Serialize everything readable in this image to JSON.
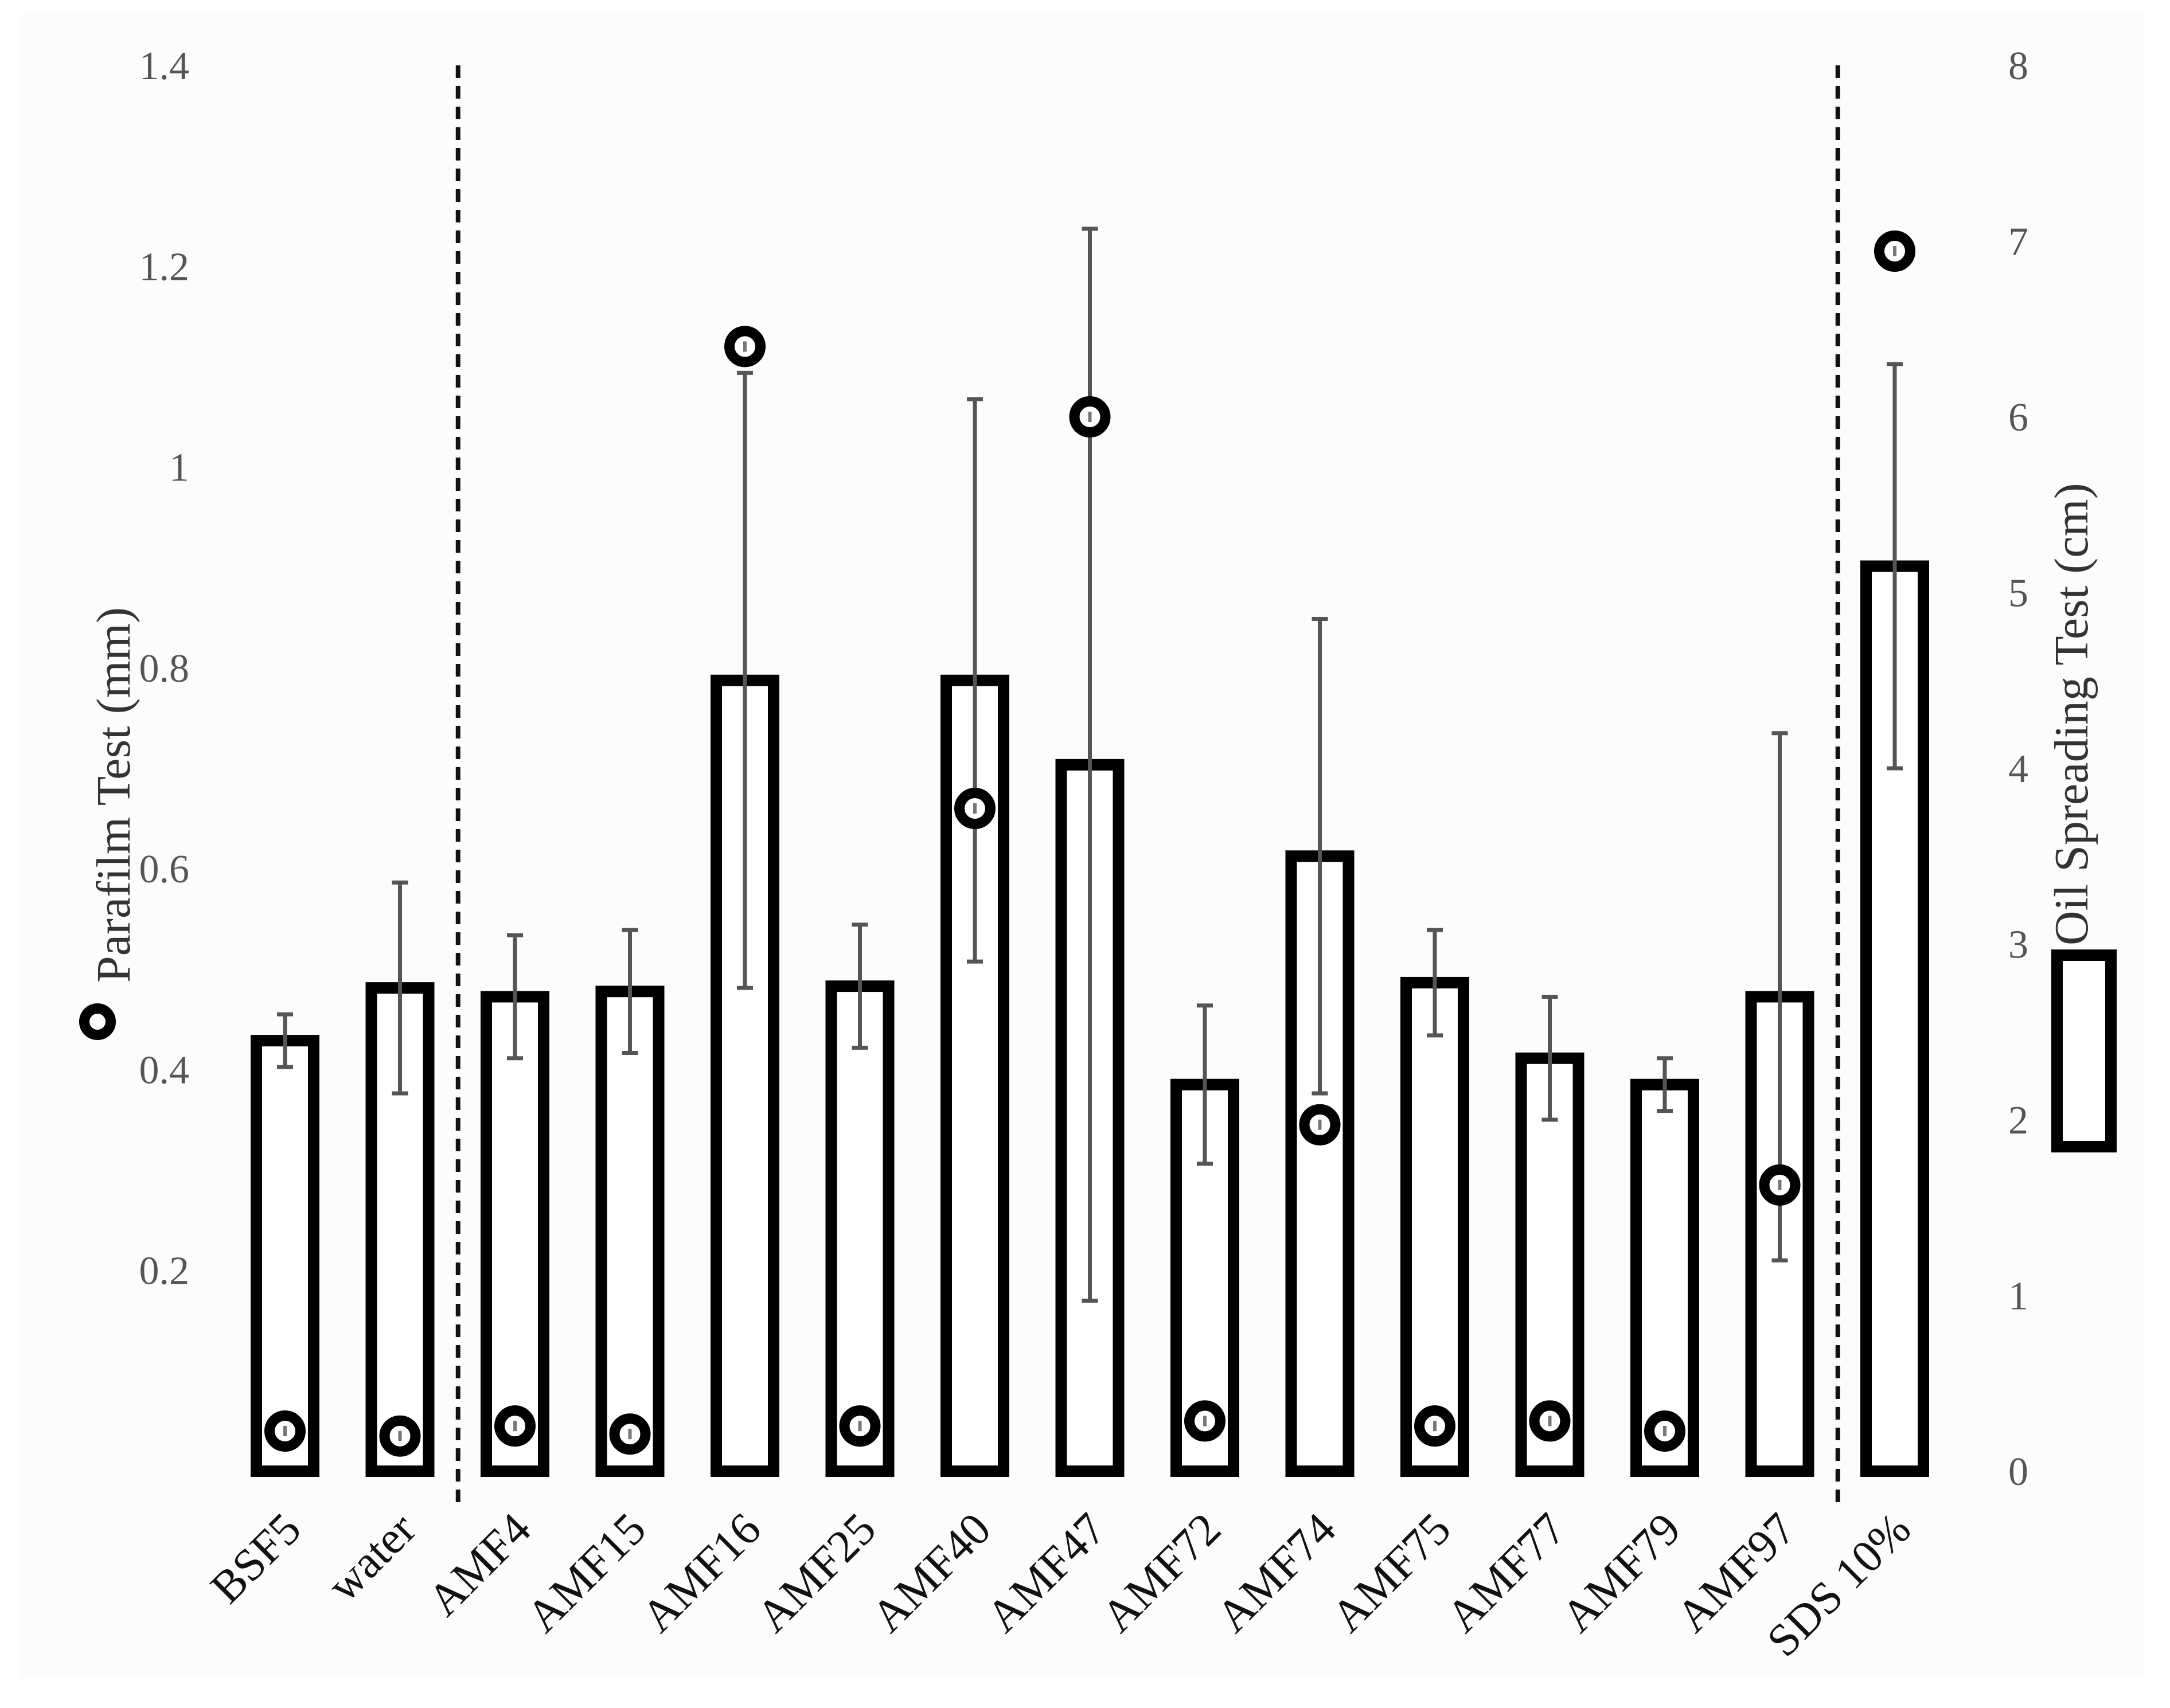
{
  "chart_data": {
    "type": "bar",
    "categories": [
      "BSF5",
      "water",
      "AMF4",
      "AMF15",
      "AMF16",
      "AMF25",
      "AMF40",
      "AMF47",
      "AMF72",
      "AMF74",
      "AMF75",
      "AMF77",
      "AMF79",
      "AMF97",
      "SDS 10%"
    ],
    "series": [
      {
        "name": "Oil Spreading Test (cm)",
        "kind": "bar",
        "axis": "right",
        "values": [
          2.45,
          2.75,
          2.7,
          2.73,
          4.5,
          2.76,
          4.5,
          4.02,
          2.2,
          3.5,
          2.78,
          2.35,
          2.2,
          2.7,
          5.15
        ],
        "error": [
          0.15,
          0.6,
          0.35,
          0.35,
          1.75,
          0.35,
          1.6,
          3.05,
          0.45,
          1.35,
          0.3,
          0.35,
          0.15,
          1.5,
          1.15
        ]
      },
      {
        "name": "Parafilm Test (mm)",
        "kind": "scatter",
        "axis": "left",
        "values": [
          0.04,
          0.035,
          0.045,
          0.037,
          1.12,
          0.045,
          0.66,
          1.05,
          0.05,
          0.345,
          0.045,
          0.05,
          0.04,
          0.285,
          1.215
        ]
      }
    ],
    "ylabel_left": "Parafilm Test (mm)",
    "ylabel_right": "Oil Spreading Test (cm)",
    "ylim_left": [
      0,
      1.4
    ],
    "ylim_right": [
      0,
      8
    ],
    "yticks_left": [
      "0.2",
      "0.4",
      "0.6",
      "0.8",
      "1",
      "1.2",
      "1.4"
    ],
    "yticks_right": [
      "0",
      "1",
      "2",
      "3",
      "4",
      "5",
      "6",
      "7",
      "8"
    ],
    "separators_after": [
      "water",
      "AMF97"
    ],
    "grid": false,
    "legend": "left and right axis titles"
  },
  "colors": {
    "bar_stroke": "#000000",
    "bar_fill": "#ffffff",
    "error_bar": "#555555",
    "tick_text": "#555555",
    "marker": "#000000",
    "background": "#fdfcfb"
  }
}
